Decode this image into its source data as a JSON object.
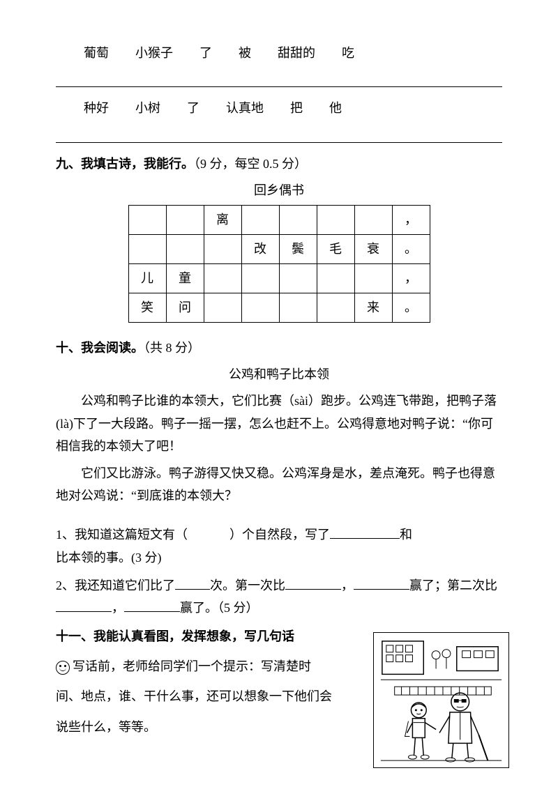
{
  "wordRow1": [
    "葡萄",
    "小猴子",
    "了",
    "被",
    "甜甜的",
    "吃"
  ],
  "wordRow2": [
    "种好",
    "小树",
    "了",
    "认真地",
    "把",
    "他"
  ],
  "section9": {
    "heading": "九、我填古诗，我能行。",
    "points": "（9 分，每空 0.5 分）",
    "poemTitle": "回乡偶书",
    "grid": [
      [
        "",
        "",
        "离",
        "",
        "",
        "",
        "",
        "，"
      ],
      [
        "",
        "",
        "",
        "改",
        "鬓",
        "毛",
        "衰",
        "。"
      ],
      [
        "儿",
        "童",
        "",
        "",
        "",
        "",
        "",
        "，"
      ],
      [
        "笑",
        "问",
        "",
        "",
        "",
        "",
        "来",
        "。"
      ]
    ],
    "rows": 4,
    "cols": 8
  },
  "section10": {
    "heading": "十、我会阅读。",
    "points": "（共 8 分）",
    "passageTitle": "公鸡和鸭子比本领",
    "para1": "公鸡和鸭子比谁的本领大，它们比赛（sài）跑步。公鸡连飞带跑，把鸭子落(là)下了一大段路。鸭子一摇一摆，怎么也赶不上。公鸡得意地对鸭子说：“你可相信我的本领大了吧！",
    "para2": "它们又比游泳。鸭子游得又快又稳。公鸡浑身是水，差点淹死。鸭子也得意地对公鸡说：“到底谁的本领大？",
    "q1a": "1、我知道这篇短文有（",
    "q1b": "）个自然段，写了",
    "q1c": "和",
    "q1d": "比本领的事。(3 分)",
    "q2a": "2、我还知道它们比了",
    "q2b": "次。第一次比",
    "q2c": "，",
    "q2d": "赢了；第二次比",
    "q2e": "，",
    "q2f": "赢了。（5 分）"
  },
  "section11": {
    "heading": "十一、我能认真看图，发挥想象，写几句话",
    "text": "写话前，老师给同学们一个提示：写清楚时间、地点，谁、干什么事，还可以想象一下他们会说些什么，等等。"
  }
}
